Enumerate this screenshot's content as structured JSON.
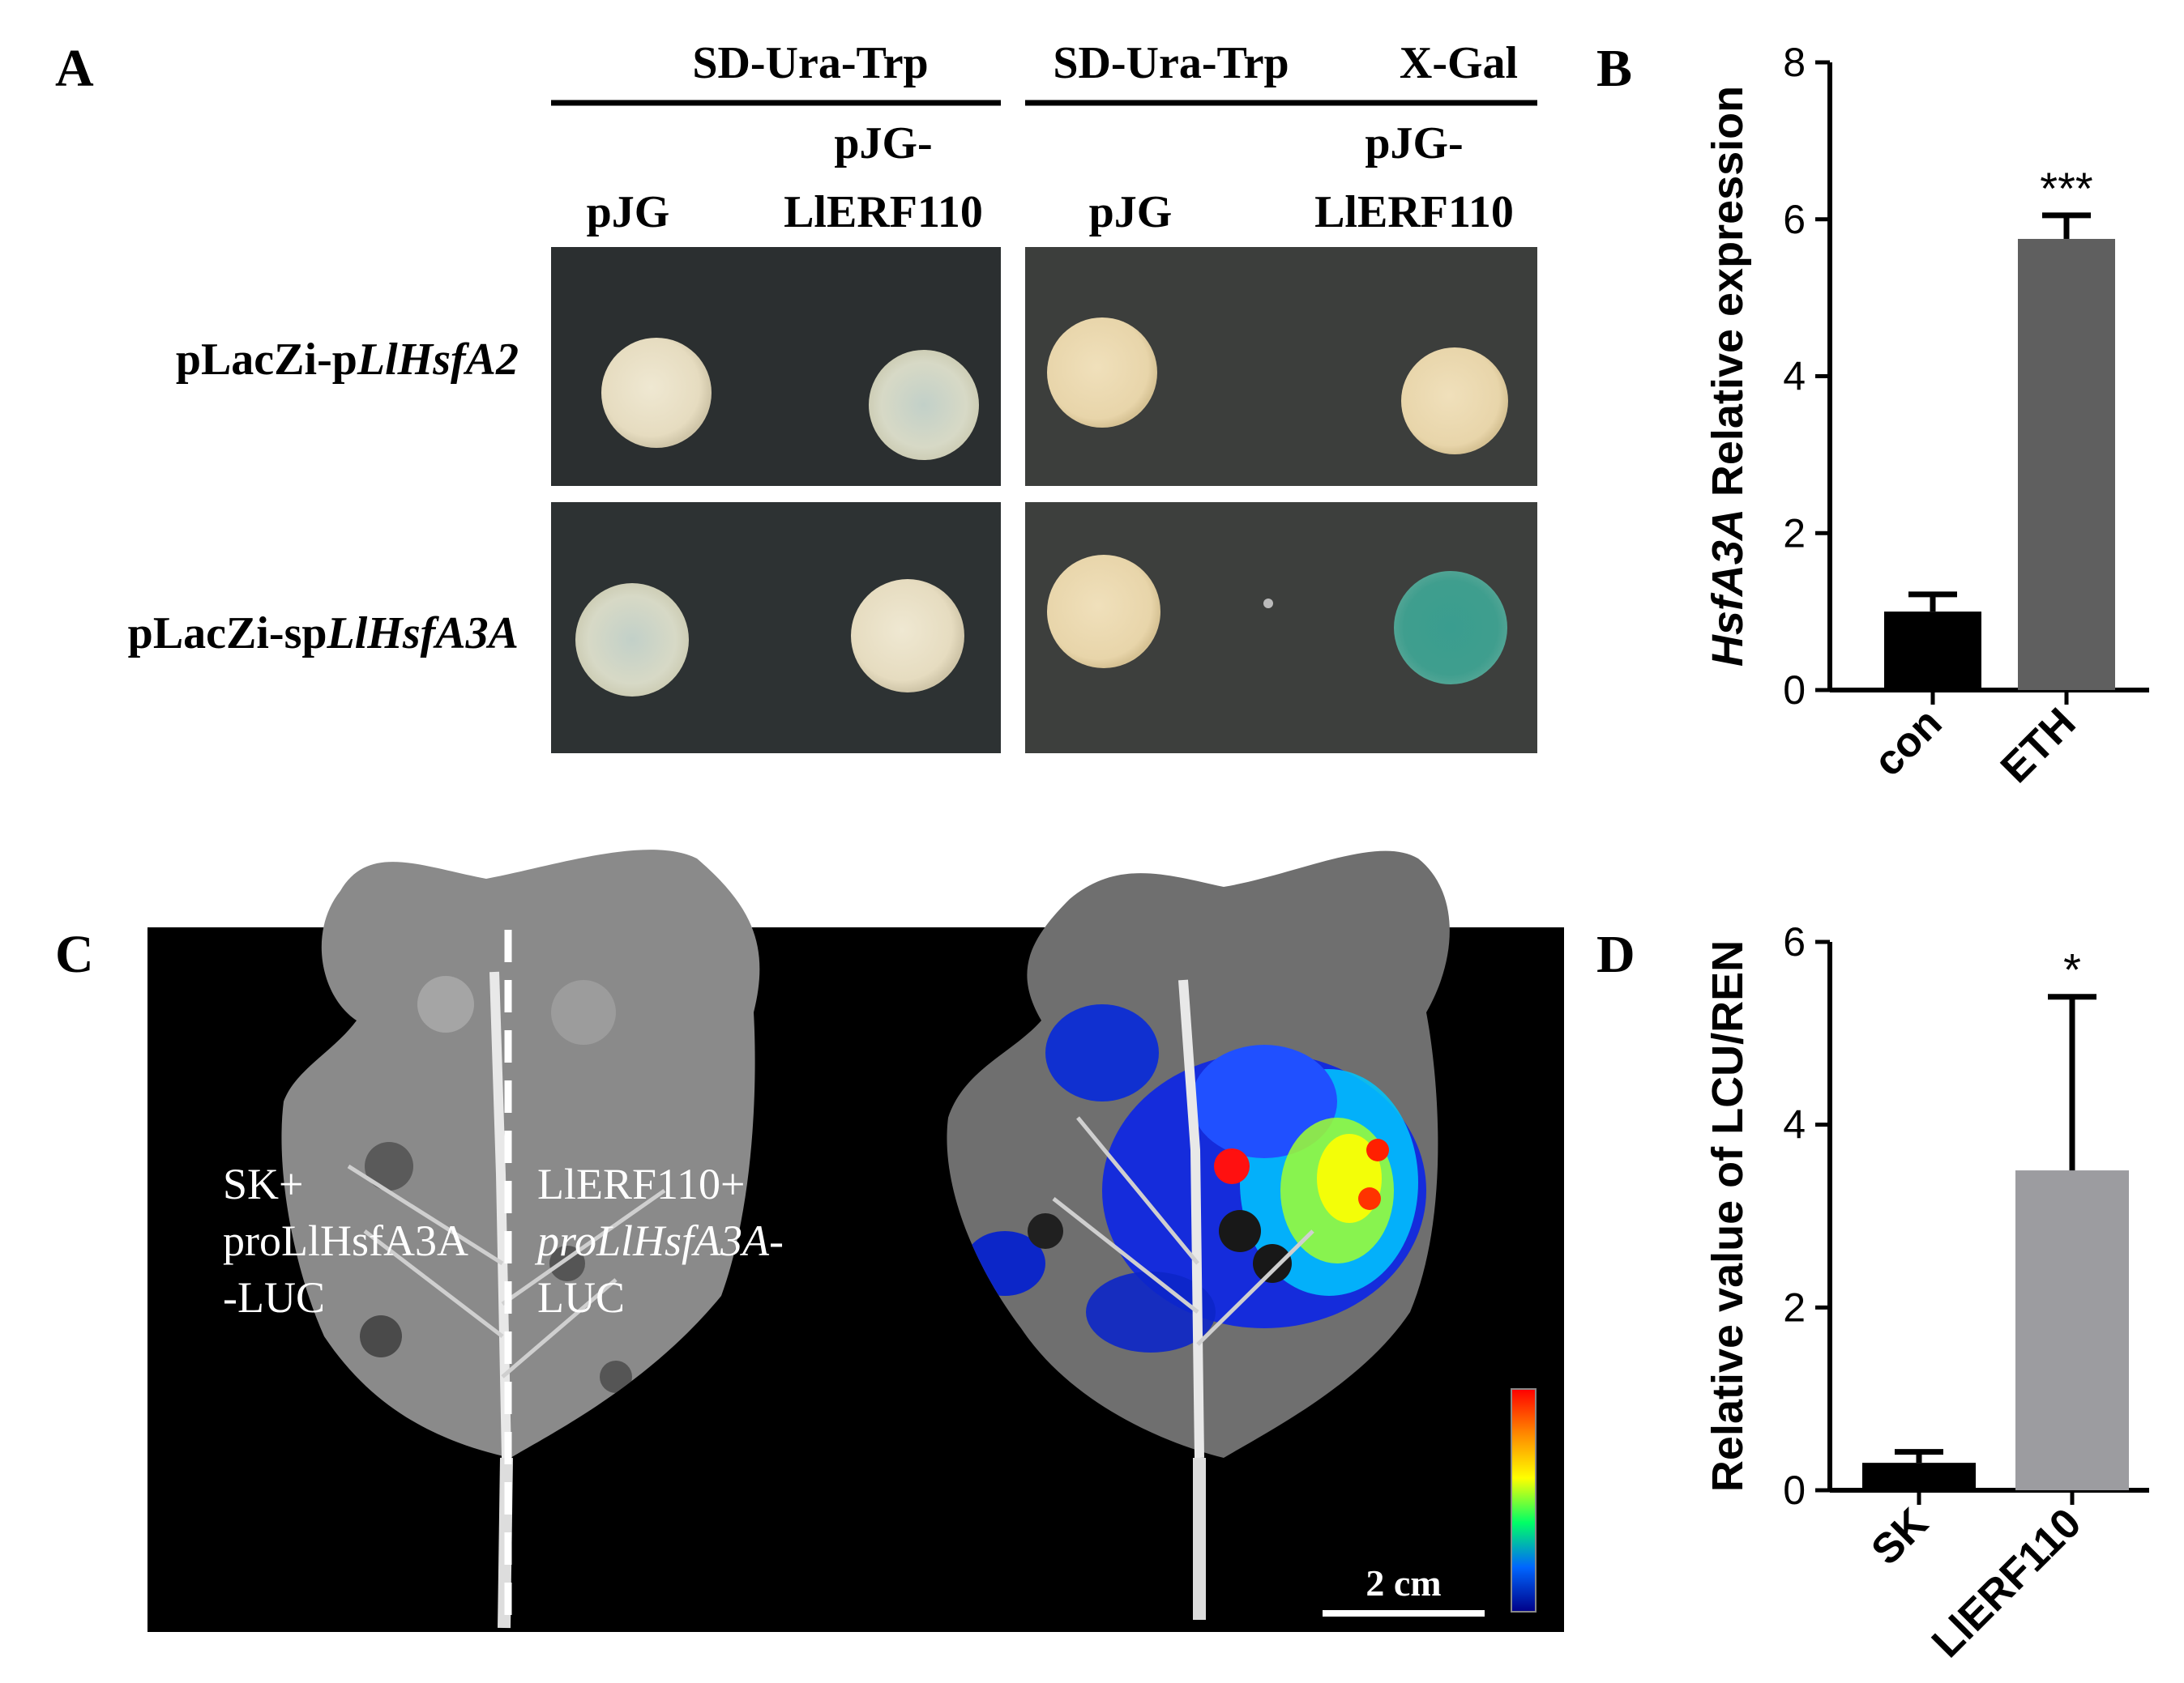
{
  "panel_letters": {
    "a": "A",
    "b": "B",
    "c": "C",
    "d": "D"
  },
  "panel_a": {
    "media": [
      {
        "label": "SD-Ura-Trp",
        "extra": ""
      },
      {
        "label": "SD-Ura-Trp",
        "extra": "X-Gal"
      }
    ],
    "columns": [
      {
        "line1": "pJG",
        "line2": ""
      },
      {
        "line1": "pJG-",
        "line2": "LlERF110"
      },
      {
        "line1": "pJG",
        "line2": ""
      },
      {
        "line1": "pJG-",
        "line2": "LlERF110"
      }
    ],
    "rows": [
      {
        "prefix": "pLacZi-p",
        "italic": "LlHsfA2"
      },
      {
        "prefix": "pLacZi-sp",
        "italic": "LlHsfA3A"
      }
    ],
    "colony_colors": {
      "cream": "#e9e1c8",
      "pale_blue": "#c5d2c8",
      "tan": "#ead8b0",
      "blue": "#3e9c8e"
    }
  },
  "panel_c": {
    "left_text": [
      "SK+",
      "proLlHsfA3A",
      "-LUC"
    ],
    "right_text": [
      "LlERF110+",
      "proLlHsfA3A-",
      "LUC"
    ],
    "scale_bar": "2 cm"
  },
  "chart_data": [
    {
      "panel": "B",
      "type": "bar",
      "categories": [
        "con",
        "ETH"
      ],
      "values": [
        1.0,
        5.75
      ],
      "errors": [
        0.22,
        0.3
      ],
      "significance": [
        "",
        "***"
      ],
      "bar_colors": [
        "#000000",
        "#5f5f5f"
      ],
      "ylabel_italic": "HsfA3A",
      "ylabel_rest": " Relative expression",
      "ylim": [
        0,
        8
      ],
      "yticks": [
        0,
        2,
        4,
        6,
        8
      ]
    },
    {
      "panel": "D",
      "type": "bar",
      "categories": [
        "SK",
        "LlERF110"
      ],
      "values": [
        0.3,
        3.5
      ],
      "errors": [
        0.12,
        1.9
      ],
      "significance": [
        "",
        "*"
      ],
      "bar_colors": [
        "#000000",
        "#9c9ca0"
      ],
      "ylabel_italic": "",
      "ylabel_rest": "Relative value of LCU/REN",
      "ylim": [
        0,
        6
      ],
      "yticks": [
        0,
        2,
        4,
        6
      ]
    }
  ]
}
